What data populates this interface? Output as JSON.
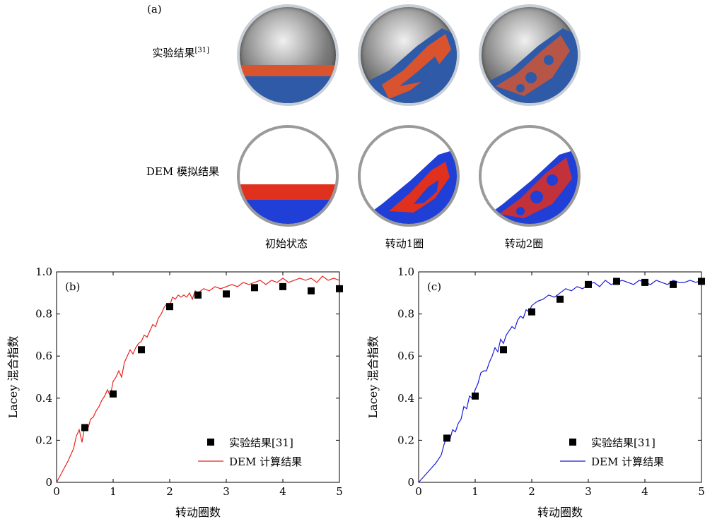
{
  "panel_a": {
    "label": "(a)",
    "row_labels": {
      "experiment": "实验结果",
      "experiment_ref": "[31]",
      "simulation": "DEM 模拟结果"
    },
    "col_labels": [
      "初始状态",
      "转动1圈",
      "转动2圈"
    ],
    "colors": {
      "red_particles": "#e0301e",
      "blue_particles": "#1f3fd6",
      "photo_red": "#d9542e",
      "photo_blue": "#2f5aa8"
    }
  },
  "chart_data": [
    {
      "type": "line",
      "panel_label": "(b)",
      "xlabel": "转动圈数",
      "ylabel": "Lacey 混合指数",
      "xlim": [
        0,
        5
      ],
      "ylim": [
        0,
        1.0
      ],
      "xticks": [
        0,
        1,
        2,
        3,
        4,
        5
      ],
      "yticks": [
        0,
        0.2,
        0.4,
        0.6,
        0.8,
        1.0
      ],
      "ytick_labels": [
        "0",
        "0.2",
        "0.4",
        "0.6",
        "0.8",
        "1.0"
      ],
      "legend_position": "bottom-right",
      "series": [
        {
          "name": "实验结果[31]",
          "kind": "marker",
          "color": "#000000",
          "x": [
            0.5,
            1.0,
            1.5,
            2.0,
            2.5,
            3.0,
            3.5,
            4.0,
            4.5,
            5.0
          ],
          "y": [
            0.26,
            0.42,
            0.63,
            0.835,
            0.89,
            0.895,
            0.925,
            0.93,
            0.91,
            0.92
          ]
        },
        {
          "name": "DEM 计算结果",
          "kind": "line",
          "color": "#e8231e",
          "x": [
            0,
            0.1,
            0.2,
            0.3,
            0.35,
            0.4,
            0.45,
            0.5,
            0.55,
            0.6,
            0.65,
            0.7,
            0.75,
            0.8,
            0.85,
            0.9,
            0.95,
            1.0,
            1.05,
            1.1,
            1.15,
            1.2,
            1.25,
            1.3,
            1.35,
            1.4,
            1.45,
            1.5,
            1.55,
            1.6,
            1.65,
            1.7,
            1.75,
            1.8,
            1.85,
            1.9,
            1.95,
            2.0,
            2.05,
            2.1,
            2.15,
            2.2,
            2.25,
            2.3,
            2.35,
            2.4,
            2.45,
            2.5,
            2.6,
            2.7,
            2.8,
            2.9,
            3.0,
            3.1,
            3.2,
            3.3,
            3.4,
            3.5,
            3.6,
            3.7,
            3.8,
            3.9,
            4.0,
            4.1,
            4.2,
            4.3,
            4.4,
            4.5,
            4.6,
            4.7,
            4.8,
            4.9,
            5.0
          ],
          "y": [
            0,
            0.05,
            0.1,
            0.16,
            0.22,
            0.25,
            0.19,
            0.27,
            0.25,
            0.3,
            0.31,
            0.34,
            0.36,
            0.39,
            0.41,
            0.44,
            0.41,
            0.48,
            0.5,
            0.53,
            0.5,
            0.57,
            0.6,
            0.63,
            0.61,
            0.64,
            0.66,
            0.67,
            0.7,
            0.69,
            0.72,
            0.75,
            0.74,
            0.78,
            0.8,
            0.83,
            0.85,
            0.84,
            0.88,
            0.87,
            0.89,
            0.88,
            0.89,
            0.88,
            0.9,
            0.87,
            0.91,
            0.9,
            0.92,
            0.91,
            0.93,
            0.92,
            0.93,
            0.94,
            0.93,
            0.95,
            0.94,
            0.95,
            0.96,
            0.94,
            0.96,
            0.95,
            0.97,
            0.95,
            0.96,
            0.97,
            0.96,
            0.97,
            0.95,
            0.98,
            0.96,
            0.97,
            0.96
          ]
        }
      ]
    },
    {
      "type": "line",
      "panel_label": "(c)",
      "xlabel": "转动圈数",
      "ylabel": "Lacey 混合指数",
      "xlim": [
        0,
        5
      ],
      "ylim": [
        0,
        1.0
      ],
      "xticks": [
        0,
        1,
        2,
        3,
        4,
        5
      ],
      "yticks": [
        0,
        0.2,
        0.4,
        0.6,
        0.8,
        1.0
      ],
      "ytick_labels": [
        "0",
        "0.2",
        "0.4",
        "0.6",
        "0.8",
        "1.0"
      ],
      "legend_position": "bottom-right",
      "series": [
        {
          "name": "实验结果[31]",
          "kind": "marker",
          "color": "#000000",
          "x": [
            0.5,
            1.0,
            1.5,
            2.0,
            2.5,
            3.0,
            3.5,
            4.0,
            4.5,
            5.0
          ],
          "y": [
            0.21,
            0.41,
            0.63,
            0.81,
            0.87,
            0.94,
            0.955,
            0.95,
            0.94,
            0.955
          ]
        },
        {
          "name": "DEM 计算结果",
          "kind": "line",
          "color": "#1a1adb",
          "x": [
            0,
            0.1,
            0.2,
            0.3,
            0.4,
            0.45,
            0.5,
            0.55,
            0.6,
            0.65,
            0.7,
            0.75,
            0.8,
            0.85,
            0.9,
            0.95,
            1.0,
            1.05,
            1.1,
            1.15,
            1.2,
            1.25,
            1.3,
            1.35,
            1.4,
            1.45,
            1.5,
            1.55,
            1.6,
            1.65,
            1.7,
            1.75,
            1.8,
            1.85,
            1.9,
            1.95,
            2.0,
            2.1,
            2.2,
            2.3,
            2.4,
            2.5,
            2.6,
            2.7,
            2.8,
            2.9,
            3.0,
            3.1,
            3.2,
            3.3,
            3.4,
            3.5,
            3.6,
            3.7,
            3.8,
            3.9,
            4.0,
            4.1,
            4.2,
            4.3,
            4.4,
            4.5,
            4.6,
            4.7,
            4.8,
            4.9,
            5.0
          ],
          "y": [
            0,
            0.03,
            0.06,
            0.09,
            0.13,
            0.18,
            0.22,
            0.2,
            0.25,
            0.24,
            0.28,
            0.3,
            0.36,
            0.35,
            0.41,
            0.4,
            0.44,
            0.47,
            0.52,
            0.53,
            0.53,
            0.57,
            0.6,
            0.64,
            0.62,
            0.68,
            0.66,
            0.7,
            0.72,
            0.74,
            0.73,
            0.77,
            0.79,
            0.78,
            0.82,
            0.81,
            0.84,
            0.86,
            0.87,
            0.89,
            0.88,
            0.9,
            0.92,
            0.91,
            0.93,
            0.92,
            0.94,
            0.95,
            0.93,
            0.96,
            0.94,
            0.95,
            0.96,
            0.95,
            0.94,
            0.96,
            0.95,
            0.94,
            0.96,
            0.95,
            0.94,
            0.96,
            0.95,
            0.95,
            0.96,
            0.95,
            0.96
          ]
        }
      ]
    }
  ]
}
